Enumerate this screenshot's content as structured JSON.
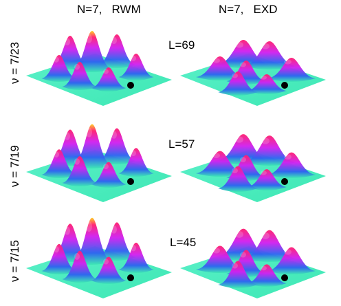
{
  "columns": [
    {
      "title": "N=7,   RWM"
    },
    {
      "title": "N=7,   EXD"
    }
  ],
  "rows": [
    {
      "nu_label": "ν = 7/23",
      "L_label": "L=69"
    },
    {
      "nu_label": "ν = 7/19",
      "L_label": "L=57"
    },
    {
      "nu_label": "ν = 7/15",
      "L_label": "L=45"
    }
  ],
  "colors": {
    "plane": "#3ee8b4",
    "low": "#2d63f0",
    "mid": "#d020f0",
    "peak": "#ff2070",
    "top": "#ffd020",
    "dot": "#000000"
  }
}
